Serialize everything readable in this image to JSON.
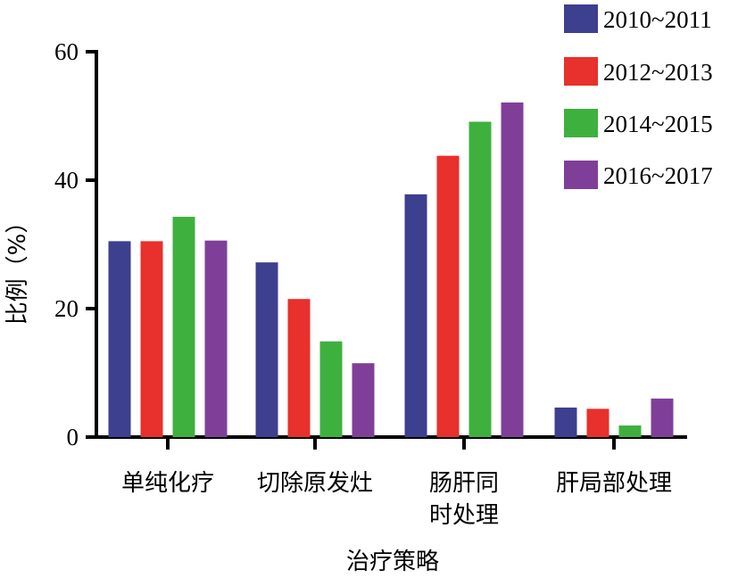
{
  "chart_data": {
    "type": "bar",
    "categories": [
      [
        "单纯化疗"
      ],
      [
        "切除原发灶"
      ],
      [
        "肠肝同",
        "时处理"
      ],
      [
        "肝局部处理"
      ]
    ],
    "series": [
      {
        "name": "2010~2011",
        "color": "#3d3f8f",
        "values": [
          30.5,
          27.2,
          37.8,
          4.6
        ]
      },
      {
        "name": "2012~2013",
        "color": "#e8302c",
        "values": [
          30.5,
          21.5,
          43.8,
          4.4
        ]
      },
      {
        "name": "2014~2015",
        "color": "#3eb03e",
        "values": [
          34.3,
          14.9,
          49.1,
          1.8
        ]
      },
      {
        "name": "2016~2017",
        "color": "#7f3f98",
        "values": [
          30.6,
          11.5,
          52.1,
          6.0
        ]
      }
    ],
    "xlabel": "治疗策略",
    "ylabel": "比例（%）",
    "ylim": [
      0,
      60
    ],
    "yticks": [
      0,
      20,
      40,
      60
    ],
    "grid": false,
    "legend_position": "top-right"
  }
}
